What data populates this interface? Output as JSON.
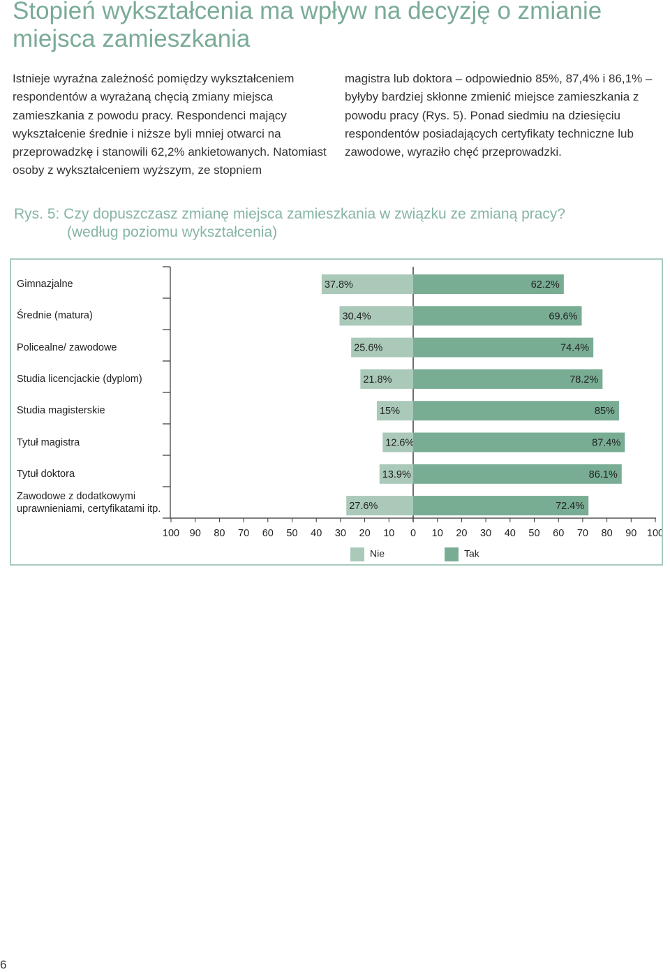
{
  "title": "Stopień wykształcenia ma wpływ na decyzję o zmianie miejsca zamieszkania",
  "paragraph_col1": "Istnieje wyraźna zależność pomiędzy wykształceniem respondentów a wyrażaną chęcią zmiany miejsca zamieszkania z powodu pracy. Respondenci mający wykształcenie średnie i niższe byli mniej otwarci na przeprowadzkę i stanowili 62,2% ankietowanych. Natomiast osoby z wykształceniem wyższym, ze stopniem",
  "paragraph_col2": "magistra lub doktora – odpowiednio 85%, 87,4% i 86,1% – byłyby bardziej skłonne zmienić miejsce zamieszkania z powodu pracy (Rys. 5). Ponad siedmiu na dziesięciu respondentów posiadających certyfikaty techniczne lub zawodowe, wyraziło chęć przeprowadzki.",
  "caption_line1": "Rys. 5: Czy dopuszczasz zmianę miejsca zamieszkania w związku ze zmianą pracy?",
  "caption_line2": "(według poziomu wykształcenia)",
  "page_number": "6",
  "colors": {
    "nie": "#aac9b9",
    "tak": "#78ad94",
    "accent": "#7aab97"
  },
  "chart_data": {
    "type": "bar",
    "orientation": "horizontal-diverging",
    "categories": [
      "Gimnazjalne",
      "Średnie (matura)",
      "Policealne/ zawodowe",
      "Studia licencjackie (dyplom)",
      "Studia magisterskie",
      "Tytuł magistra",
      "Tytuł doktora",
      "Zawodowe z dodatkowymi uprawnieniami, certyfikatami itp."
    ],
    "series": [
      {
        "name": "Nie",
        "values": [
          37.8,
          30.4,
          25.6,
          21.8,
          15,
          12.6,
          13.9,
          27.6
        ],
        "labels": [
          "37.8%",
          "30.4%",
          "25.6%",
          "21.8%",
          "15%",
          "12.6%",
          "13.9%",
          "27.6%"
        ]
      },
      {
        "name": "Tak",
        "values": [
          62.2,
          69.6,
          74.4,
          78.2,
          85,
          87.4,
          86.1,
          72.4
        ],
        "labels": [
          "62.2%",
          "69.6%",
          "74.4%",
          "78.2%",
          "85%",
          "87.4%",
          "86.1%",
          "72.4%"
        ]
      }
    ],
    "xticks": [
      "100",
      "90",
      "80",
      "70",
      "60",
      "50",
      "40",
      "30",
      "20",
      "10",
      "0",
      "10",
      "20",
      "30",
      "40",
      "50",
      "60",
      "70",
      "80",
      "90",
      "100"
    ],
    "xlim": [
      -100,
      100
    ],
    "grid": false,
    "legend": "bottom"
  }
}
